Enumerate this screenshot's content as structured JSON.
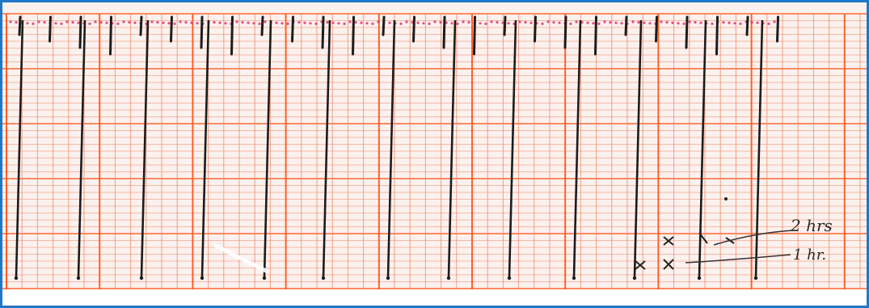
{
  "colors": {
    "frame": "#1f77c8",
    "paper": "#fbf1ee",
    "grid_minor": "#f08c6c",
    "grid_major": "#ff5a1e",
    "ink": "#1c1c1c",
    "pink_dots": "#e3306a"
  },
  "annotations": {
    "label_2hrs": "2 hrs",
    "label_1hr": "1 hr."
  }
}
